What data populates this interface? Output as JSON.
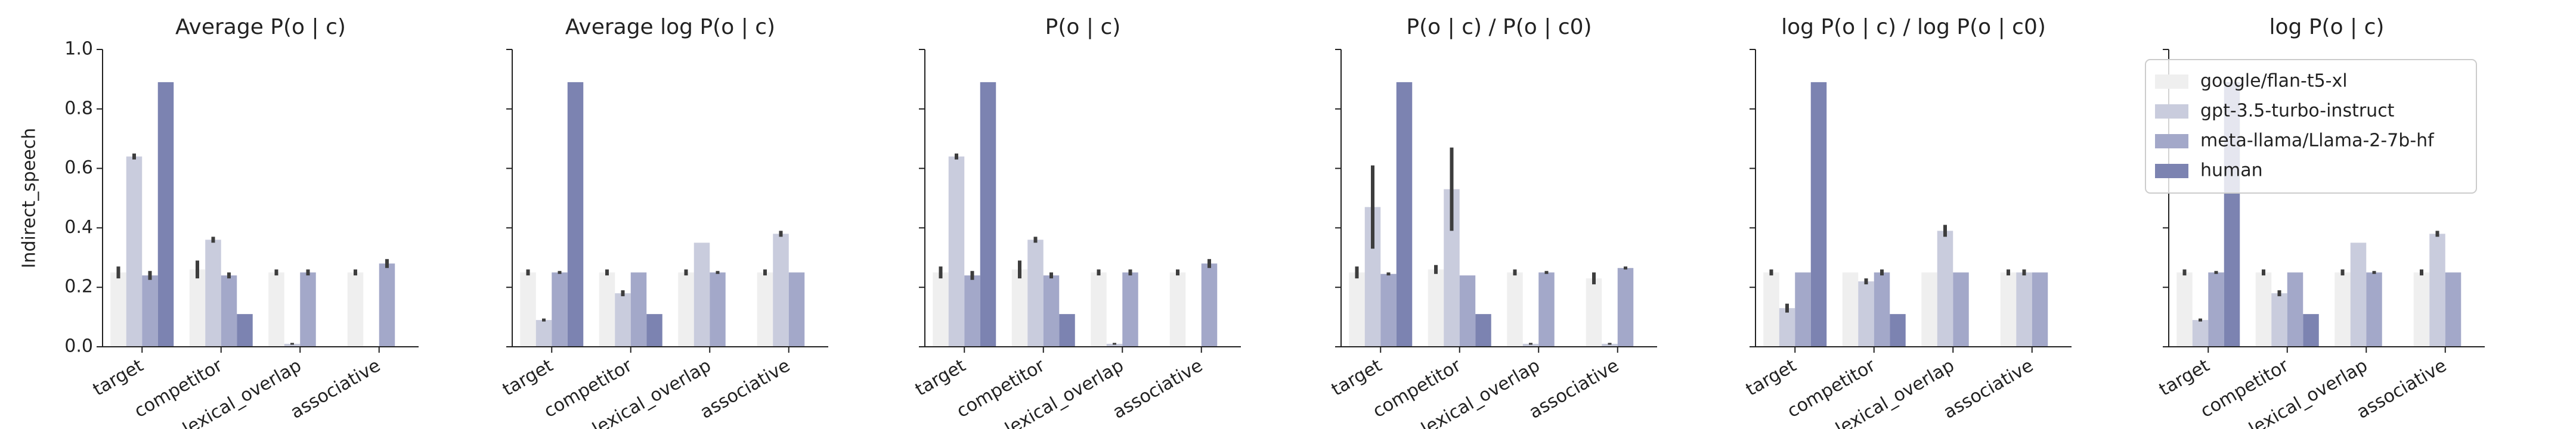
{
  "chart_data": [
    {
      "type": "bar",
      "title": "Average P(o | c)",
      "ylabel": "Indirect_speech",
      "categories": [
        "target",
        "competitor",
        "lexical_overlap",
        "associative"
      ],
      "series": [
        {
          "color": "#efefef",
          "values": [
            0.25,
            0.26,
            0.25,
            0.25
          ],
          "errors": [
            0.02,
            0.03,
            0.01,
            0.01
          ]
        },
        {
          "color": "#c9ccdd",
          "values": [
            0.64,
            0.36,
            0.01,
            0
          ],
          "errors": [
            0.01,
            0.01,
            0.003,
            0
          ]
        },
        {
          "color": "#a3a8c9",
          "values": [
            0.24,
            0.24,
            0.25,
            0.28
          ],
          "errors": [
            0.015,
            0.01,
            0.01,
            0.015
          ]
        },
        {
          "color": "#7c83b1",
          "values": [
            0.89,
            0.11,
            0,
            0
          ]
        }
      ],
      "ylim": [
        0,
        1
      ],
      "yticks": [
        {
          "value": 0,
          "label": "0.0"
        },
        0.2,
        0.4,
        0.6,
        0.8,
        {
          "value": 1,
          "label": "1.0"
        }
      ]
    },
    {
      "type": "bar",
      "title": "Average log P(o | c)",
      "categories": [
        "target",
        "competitor",
        "lexical_overlap",
        "associative"
      ],
      "series": [
        {
          "color": "#efefef",
          "values": [
            0.25,
            0.25,
            0.25,
            0.25
          ],
          "errors": [
            0.01,
            0.01,
            0.01,
            0.01
          ]
        },
        {
          "color": "#c9ccdd",
          "values": [
            0.09,
            0.18,
            0.35,
            0.38
          ],
          "errors": [
            0.005,
            0.01,
            0,
            0.01
          ]
        },
        {
          "color": "#a3a8c9",
          "values": [
            0.25,
            0.25,
            0.25,
            0.25
          ],
          "errors": [
            0.005,
            0,
            0.005,
            0
          ]
        },
        {
          "color": "#7c83b1",
          "values": [
            0.89,
            0.11,
            0,
            0
          ]
        }
      ],
      "ylim": [
        0,
        1
      ],
      "yticks": [
        0,
        0.2,
        0.4,
        0.6,
        0.8,
        1
      ]
    },
    {
      "type": "bar",
      "title": "P(o | c)",
      "categories": [
        "target",
        "competitor",
        "lexical_overlap",
        "associative"
      ],
      "series": [
        {
          "color": "#efefef",
          "values": [
            0.25,
            0.26,
            0.25,
            0.25
          ],
          "errors": [
            0.02,
            0.03,
            0.01,
            0.01
          ]
        },
        {
          "color": "#c9ccdd",
          "values": [
            0.64,
            0.36,
            0.01,
            0
          ],
          "errors": [
            0.01,
            0.01,
            0.003,
            0
          ]
        },
        {
          "color": "#a3a8c9",
          "values": [
            0.24,
            0.24,
            0.25,
            0.28
          ],
          "errors": [
            0.015,
            0.01,
            0.01,
            0.015
          ]
        },
        {
          "color": "#7c83b1",
          "values": [
            0.89,
            0.11,
            0,
            0
          ]
        }
      ],
      "ylim": [
        0,
        1
      ],
      "yticks": [
        0,
        0.2,
        0.4,
        0.6,
        0.8,
        1
      ]
    },
    {
      "type": "bar",
      "title": "P(o | c) / P(o | c0)",
      "categories": [
        "target",
        "competitor",
        "lexical_overlap",
        "associative"
      ],
      "series": [
        {
          "color": "#efefef",
          "values": [
            0.25,
            0.26,
            0.25,
            0.23
          ],
          "errors": [
            0.02,
            0.015,
            0.01,
            0.02
          ]
        },
        {
          "color": "#c9ccdd",
          "values": [
            0.47,
            0.53,
            0.01,
            0.01
          ],
          "errors": [
            0.14,
            0.14,
            0.003,
            0.003
          ]
        },
        {
          "color": "#a3a8c9",
          "values": [
            0.245,
            0.24,
            0.25,
            0.265
          ],
          "errors": [
            0.005,
            0,
            0.005,
            0.005
          ]
        },
        {
          "color": "#7c83b1",
          "values": [
            0.89,
            0.11,
            0,
            0
          ]
        }
      ],
      "ylim": [
        0,
        1
      ],
      "yticks": [
        0,
        0.2,
        0.4,
        0.6,
        0.8,
        1
      ]
    },
    {
      "type": "bar",
      "title": "log P(o | c) / log P(o | c0)",
      "categories": [
        "target",
        "competitor",
        "lexical_overlap",
        "associative"
      ],
      "series": [
        {
          "color": "#efefef",
          "values": [
            0.25,
            0.25,
            0.25,
            0.25
          ],
          "errors": [
            0.01,
            0,
            0,
            0.01
          ]
        },
        {
          "color": "#c9ccdd",
          "values": [
            0.13,
            0.22,
            0.39,
            0.25
          ],
          "errors": [
            0.015,
            0.01,
            0.02,
            0.01
          ]
        },
        {
          "color": "#a3a8c9",
          "values": [
            0.25,
            0.25,
            0.25,
            0.25
          ],
          "errors": [
            0,
            0.01,
            0,
            0
          ]
        },
        {
          "color": "#7c83b1",
          "values": [
            0.89,
            0.11,
            0,
            0
          ]
        }
      ],
      "ylim": [
        0,
        1
      ],
      "yticks": [
        0,
        0.2,
        0.4,
        0.6,
        0.8,
        1
      ]
    },
    {
      "type": "bar",
      "title": "log P(o | c)",
      "categories": [
        "target",
        "competitor",
        "lexical_overlap",
        "associative"
      ],
      "series": [
        {
          "name": "google/flan-t5-xl",
          "color": "#efefef",
          "values": [
            0.25,
            0.25,
            0.25,
            0.25
          ],
          "errors": [
            0.01,
            0.01,
            0.01,
            0.01
          ]
        },
        {
          "name": "gpt-3.5-turbo-instruct",
          "color": "#c9ccdd",
          "values": [
            0.09,
            0.18,
            0.35,
            0.38
          ],
          "errors": [
            0.005,
            0.01,
            0,
            0.01
          ]
        },
        {
          "name": "meta-llama/Llama-2-7b-hf",
          "color": "#a3a8c9",
          "values": [
            0.25,
            0.25,
            0.25,
            0.25
          ],
          "errors": [
            0.005,
            0,
            0.005,
            0
          ]
        },
        {
          "name": "human",
          "color": "#7c83b1",
          "values": [
            0.89,
            0.11,
            0,
            0
          ]
        }
      ],
      "ylim": [
        0,
        1
      ],
      "yticks": [
        0,
        0.2,
        0.4,
        0.6,
        0.8,
        1
      ],
      "legend": "upper right"
    }
  ]
}
